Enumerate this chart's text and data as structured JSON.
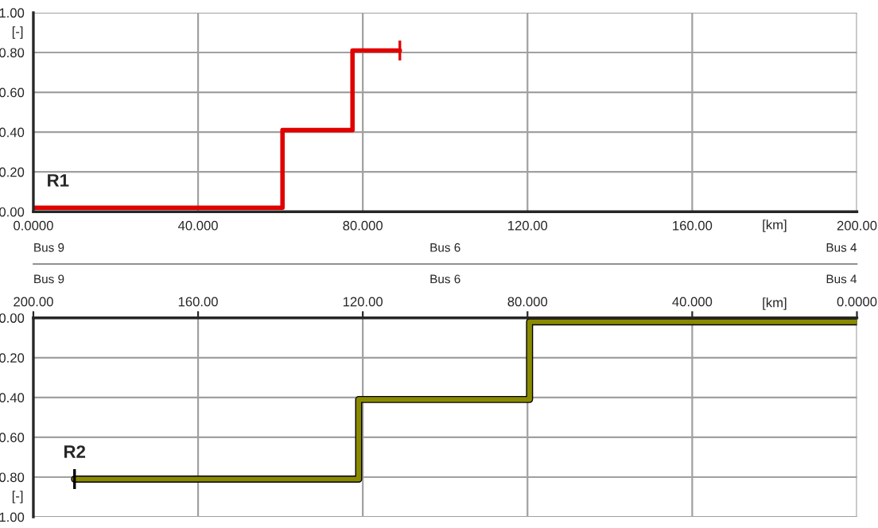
{
  "chart_data": [
    {
      "type": "step",
      "xlabel": "[km]",
      "ylabel": "[-]",
      "xlim": [
        0,
        200
      ],
      "ylim": [
        0,
        1
      ],
      "xticks": [
        {
          "value": 0,
          "label": "0.0000"
        },
        {
          "value": 40,
          "label": "40.000"
        },
        {
          "value": 80,
          "label": "80.000"
        },
        {
          "value": 120,
          "label": "120.00"
        },
        {
          "value": 160,
          "label": "160.00"
        },
        {
          "value": 200,
          "label": "200.00"
        }
      ],
      "yticks": [
        {
          "value": 0,
          "label": "0.00"
        },
        {
          "value": 0.2,
          "label": "0.20"
        },
        {
          "value": 0.4,
          "label": "0.40"
        },
        {
          "value": 0.6,
          "label": "0.60"
        },
        {
          "value": 0.8,
          "label": "0.80"
        },
        {
          "value": 1,
          "label": "1.00"
        }
      ],
      "grid": true,
      "series": [
        {
          "name": "R1",
          "color": "#e00000",
          "x": [
            0,
            60.5,
            77.5,
            89
          ],
          "values": [
            0.02,
            0.41,
            0.81,
            0.81
          ]
        }
      ],
      "annotations": [
        "Bus 9",
        "Bus 6",
        "Bus 4"
      ]
    },
    {
      "type": "step",
      "xlabel": "[km]",
      "ylabel": "[-]",
      "xlim": [
        200,
        0
      ],
      "ylim": [
        1,
        0
      ],
      "xticks": [
        {
          "value": 0,
          "label": "0.0000"
        },
        {
          "value": 40,
          "label": "40.000"
        },
        {
          "value": 80,
          "label": "80.000"
        },
        {
          "value": 120,
          "label": "120.00"
        },
        {
          "value": 160,
          "label": "160.00"
        },
        {
          "value": 200,
          "label": "200.00"
        }
      ],
      "yticks": [
        {
          "value": 0,
          "label": "0.00"
        },
        {
          "value": 0.2,
          "label": "0.20"
        },
        {
          "value": 0.4,
          "label": "0.40"
        },
        {
          "value": 0.6,
          "label": "0.60"
        },
        {
          "value": 0.8,
          "label": "0.80"
        },
        {
          "value": 1,
          "label": "1.00"
        }
      ],
      "grid": true,
      "series": [
        {
          "name": "R2",
          "color": "#8a8a00",
          "x": [
            190,
            121,
            79.5,
            0
          ],
          "values": [
            0.81,
            0.41,
            0.02,
            0.02
          ]
        }
      ],
      "annotations": [
        "Bus 9",
        "Bus 6",
        "Bus 4"
      ]
    }
  ]
}
